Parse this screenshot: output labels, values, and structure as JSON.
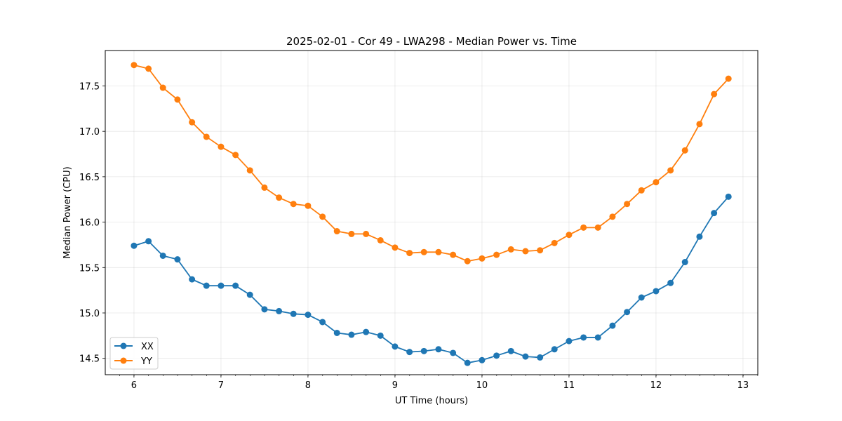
{
  "chart_data": {
    "type": "line",
    "title": "2025-02-01 - Cor 49 - LWA298 - Median Power vs. Time",
    "xlabel": "UT Time (hours)",
    "ylabel": "Median Power (CPU)",
    "xlim": [
      5.67,
      13.17
    ],
    "ylim": [
      14.32,
      17.89
    ],
    "x_ticks": [
      6,
      7,
      8,
      9,
      10,
      11,
      12,
      13
    ],
    "y_ticks": [
      14.5,
      15.0,
      15.5,
      16.0,
      16.5,
      17.0,
      17.5
    ],
    "x_tick_labels": [
      "6",
      "7",
      "8",
      "9",
      "10",
      "11",
      "12",
      "13"
    ],
    "y_tick_labels": [
      "14.5",
      "15.0",
      "15.5",
      "16.0",
      "16.5",
      "17.0",
      "17.5"
    ],
    "x_minor_step": 0.1667,
    "grid": true,
    "legend_position": "lower-left",
    "x": [
      6.0,
      6.167,
      6.333,
      6.5,
      6.667,
      6.833,
      7.0,
      7.167,
      7.333,
      7.5,
      7.667,
      7.833,
      8.0,
      8.167,
      8.333,
      8.5,
      8.667,
      8.833,
      9.0,
      9.167,
      9.333,
      9.5,
      9.667,
      9.833,
      10.0,
      10.167,
      10.333,
      10.5,
      10.667,
      10.833,
      11.0,
      11.167,
      11.333,
      11.5,
      11.667,
      11.833,
      12.0,
      12.167,
      12.333,
      12.5,
      12.667,
      12.833
    ],
    "series": [
      {
        "name": "XX",
        "color": "#1f77b4",
        "values": [
          15.74,
          15.79,
          15.63,
          15.59,
          15.37,
          15.3,
          15.3,
          15.3,
          15.2,
          15.04,
          15.02,
          14.99,
          14.98,
          14.9,
          14.78,
          14.76,
          14.79,
          14.75,
          14.63,
          14.57,
          14.58,
          14.6,
          14.56,
          14.45,
          14.48,
          14.53,
          14.58,
          14.52,
          14.51,
          14.6,
          14.69,
          14.73,
          14.73,
          14.86,
          15.01,
          15.17,
          15.24,
          15.33,
          15.56,
          15.84,
          16.1,
          16.28
        ]
      },
      {
        "name": "YY",
        "color": "#ff7f0e",
        "values": [
          17.73,
          17.69,
          17.48,
          17.35,
          17.1,
          16.94,
          16.83,
          16.74,
          16.57,
          16.38,
          16.27,
          16.2,
          16.18,
          16.06,
          15.9,
          15.87,
          15.87,
          15.8,
          15.72,
          15.66,
          15.67,
          15.67,
          15.64,
          15.57,
          15.6,
          15.64,
          15.7,
          15.68,
          15.69,
          15.77,
          15.86,
          15.94,
          15.94,
          16.06,
          16.2,
          16.35,
          16.44,
          16.57,
          16.79,
          17.08,
          17.41,
          17.58
        ]
      }
    ]
  }
}
